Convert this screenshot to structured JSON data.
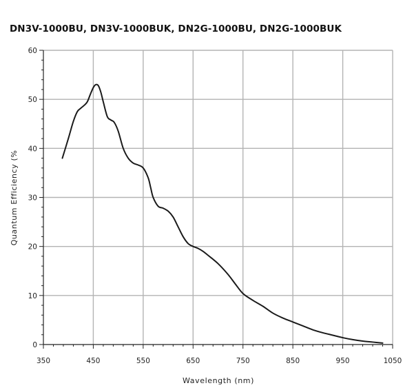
{
  "chart_data": {
    "type": "line",
    "title": "DN3V-1000BU,  DN3V-1000BUK,  DN2G-1000BU,  DN2G-1000BUK",
    "xlabel": "Wavelength (nm)",
    "ylabel": "Quantum Efficiency (%",
    "xlim": [
      350,
      1050
    ],
    "ylim": [
      0,
      60
    ],
    "xticks": [
      350,
      450,
      550,
      650,
      750,
      850,
      950,
      1050
    ],
    "yticks": [
      0,
      10,
      20,
      30,
      40,
      50,
      60
    ],
    "grid": true,
    "colors": {
      "line": "#1a1a1a",
      "grid": "#b3b3b3",
      "axis": "#222222"
    },
    "series": [
      {
        "x": [
          388,
          400,
          410,
          418,
          425,
          432,
          438,
          444,
          450,
          455,
          460,
          465,
          470,
          478,
          485,
          492,
          500,
          510,
          520,
          530,
          540,
          550,
          560,
          565,
          570,
          580,
          590,
          600,
          610,
          620,
          630,
          640,
          650,
          660,
          670,
          680,
          700,
          720,
          735,
          750,
          770,
          790,
          810,
          830,
          850,
          870,
          890,
          910,
          930,
          950,
          970,
          990,
          1010,
          1030
        ],
        "y": [
          38,
          42,
          45.5,
          47.5,
          48.2,
          48.8,
          49.5,
          51,
          52.4,
          53,
          52.8,
          51.5,
          49.5,
          46.5,
          45.8,
          45.3,
          43.5,
          40,
          38,
          37,
          36.6,
          36,
          34,
          32,
          30,
          28.2,
          27.8,
          27.2,
          26,
          24,
          22,
          20.6,
          20,
          19.6,
          19,
          18.2,
          16.5,
          14.3,
          12.3,
          10.4,
          9,
          7.8,
          6.4,
          5.4,
          4.6,
          3.8,
          3.0,
          2.4,
          1.9,
          1.4,
          1.0,
          0.7,
          0.5,
          0.3
        ]
      }
    ]
  }
}
